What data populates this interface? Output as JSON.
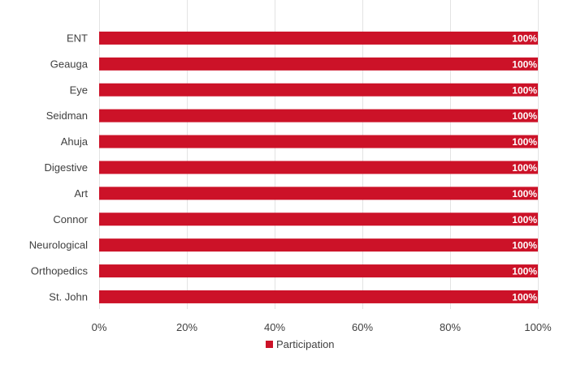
{
  "chart_data": {
    "type": "bar",
    "orientation": "horizontal",
    "categories": [
      "ENT",
      "Geauga",
      "Eye",
      "Seidman",
      "Ahuja",
      "Digestive",
      "Art",
      "Connor",
      "Neurological",
      "Orthopedics",
      "St. John"
    ],
    "series": [
      {
        "name": "Participation",
        "color": "#cc1228",
        "values": [
          1.0,
          1.0,
          1.0,
          1.0,
          1.0,
          1.0,
          1.0,
          1.0,
          1.0,
          1.0,
          1.0
        ],
        "labels": [
          "100%",
          "100%",
          "100%",
          "100%",
          "100%",
          "100%",
          "100%",
          "100%",
          "100%",
          "100%",
          "100%"
        ]
      }
    ],
    "xlim": [
      0,
      1
    ],
    "x_ticks": [
      0,
      0.2,
      0.4,
      0.6,
      0.8,
      1.0
    ],
    "x_tick_labels": [
      "0%",
      "20%",
      "40%",
      "60%",
      "80%",
      "100%"
    ],
    "grid": true,
    "legend": {
      "position": "bottom"
    }
  }
}
